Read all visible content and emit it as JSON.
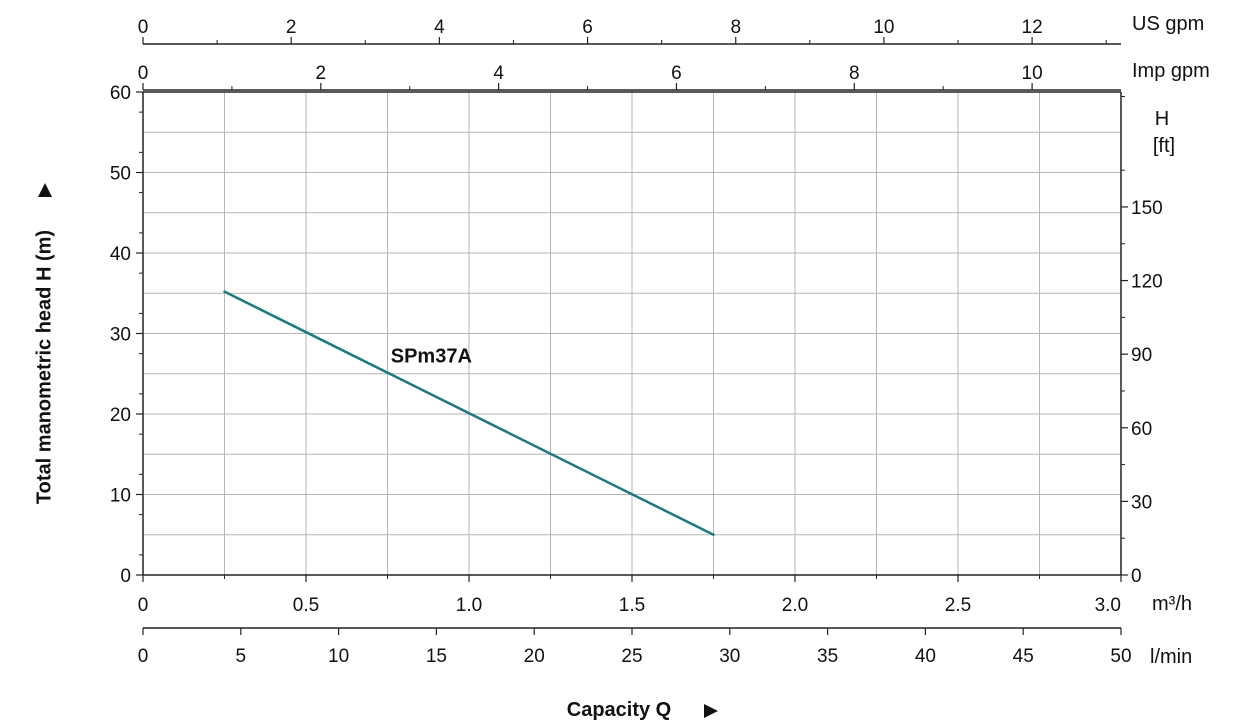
{
  "chart_data": {
    "type": "line",
    "xlabel": "Capacity Q",
    "ylabel": "Total manometric head H (m)",
    "xlim": [
      0,
      3.0
    ],
    "ylim": [
      0,
      60
    ],
    "x_unit": "m³/h",
    "x_ticks": [
      "0",
      "0.5",
      "1.0",
      "1.5",
      "2.0",
      "2.5",
      "3.0"
    ],
    "y_ticks": [
      "0",
      "10",
      "20",
      "30",
      "40",
      "50",
      "60"
    ],
    "secondary_axes": {
      "us_gpm": {
        "unit": "US gpm",
        "range": [
          0,
          13.2
        ],
        "ticks": [
          "0",
          "2",
          "4",
          "6",
          "8",
          "10",
          "12"
        ]
      },
      "imp_gpm": {
        "unit": "Imp gpm",
        "range": [
          0,
          11
        ],
        "ticks": [
          "0",
          "2",
          "4",
          "6",
          "8",
          "10"
        ]
      },
      "lmin": {
        "unit": "l/min",
        "range": [
          0,
          50
        ],
        "ticks": [
          "0",
          "5",
          "10",
          "15",
          "20",
          "25",
          "30",
          "35",
          "40",
          "45",
          "50"
        ]
      },
      "head_ft": {
        "unit_line1": "H",
        "unit_line2": "[ft]",
        "range": [
          0,
          196.9
        ],
        "ticks": [
          "0",
          "30",
          "60",
          "90",
          "120",
          "150"
        ]
      }
    },
    "series": [
      {
        "name": "SPm37A",
        "color": "#1f7a7a",
        "x": [
          0.25,
          1.75
        ],
        "y": [
          35.2,
          5.0
        ]
      }
    ],
    "grid": true
  }
}
